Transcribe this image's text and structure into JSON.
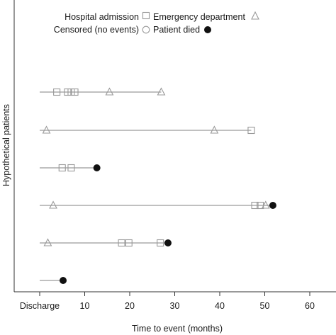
{
  "chart_data": {
    "type": "scatter",
    "title": "",
    "xlabel": "Time to event (months)",
    "ylabel": "Hypothetical patients",
    "xlim": [
      -2.5,
      65
    ],
    "x_ticks": [
      {
        "value": 0,
        "label": "Discharge"
      },
      {
        "value": 10,
        "label": "10"
      },
      {
        "value": 20,
        "label": "20"
      },
      {
        "value": 30,
        "label": "30"
      },
      {
        "value": 40,
        "label": "40"
      },
      {
        "value": 50,
        "label": "50"
      },
      {
        "value": 60,
        "label": "60"
      }
    ],
    "grid": false,
    "legend_position": "top",
    "legend": [
      {
        "label": "Hospital admission",
        "marker": "square"
      },
      {
        "label": "Emergency department",
        "marker": "triangle"
      },
      {
        "label": "Censored (no events)",
        "marker": "circle-open"
      },
      {
        "label": "Patient died",
        "marker": "circle-filled"
      }
    ],
    "colors": {
      "line": "#808080",
      "open_marker": "#999999",
      "filled_marker": "#111111",
      "axis": "#333333"
    },
    "patients": [
      {
        "follow_up_end": 27,
        "hospital_admission": [
          3.8,
          6.2,
          7.0,
          7.8
        ],
        "emergency_department": [
          15.5,
          27
        ],
        "censored": [],
        "died": []
      },
      {
        "follow_up_end": 47,
        "hospital_admission": [
          47
        ],
        "emergency_department": [
          1.5,
          38.8
        ],
        "censored": [],
        "died": []
      },
      {
        "follow_up_end": 12.7,
        "hospital_admission": [
          5.0,
          7.0
        ],
        "emergency_department": [],
        "censored": [],
        "died": [
          12.7
        ]
      },
      {
        "follow_up_end": 51.8,
        "hospital_admission": [
          47.8,
          49.0
        ],
        "emergency_department": [
          3.0,
          50.2
        ],
        "censored": [],
        "died": [
          51.8
        ]
      },
      {
        "follow_up_end": 28.5,
        "hospital_admission": [
          18.2,
          19.8,
          26.8
        ],
        "emergency_department": [
          1.8
        ],
        "censored": [],
        "died": [
          28.5
        ]
      },
      {
        "follow_up_end": 5.2,
        "hospital_admission": [],
        "emergency_department": [],
        "censored": [],
        "died": [
          5.2
        ]
      }
    ]
  }
}
